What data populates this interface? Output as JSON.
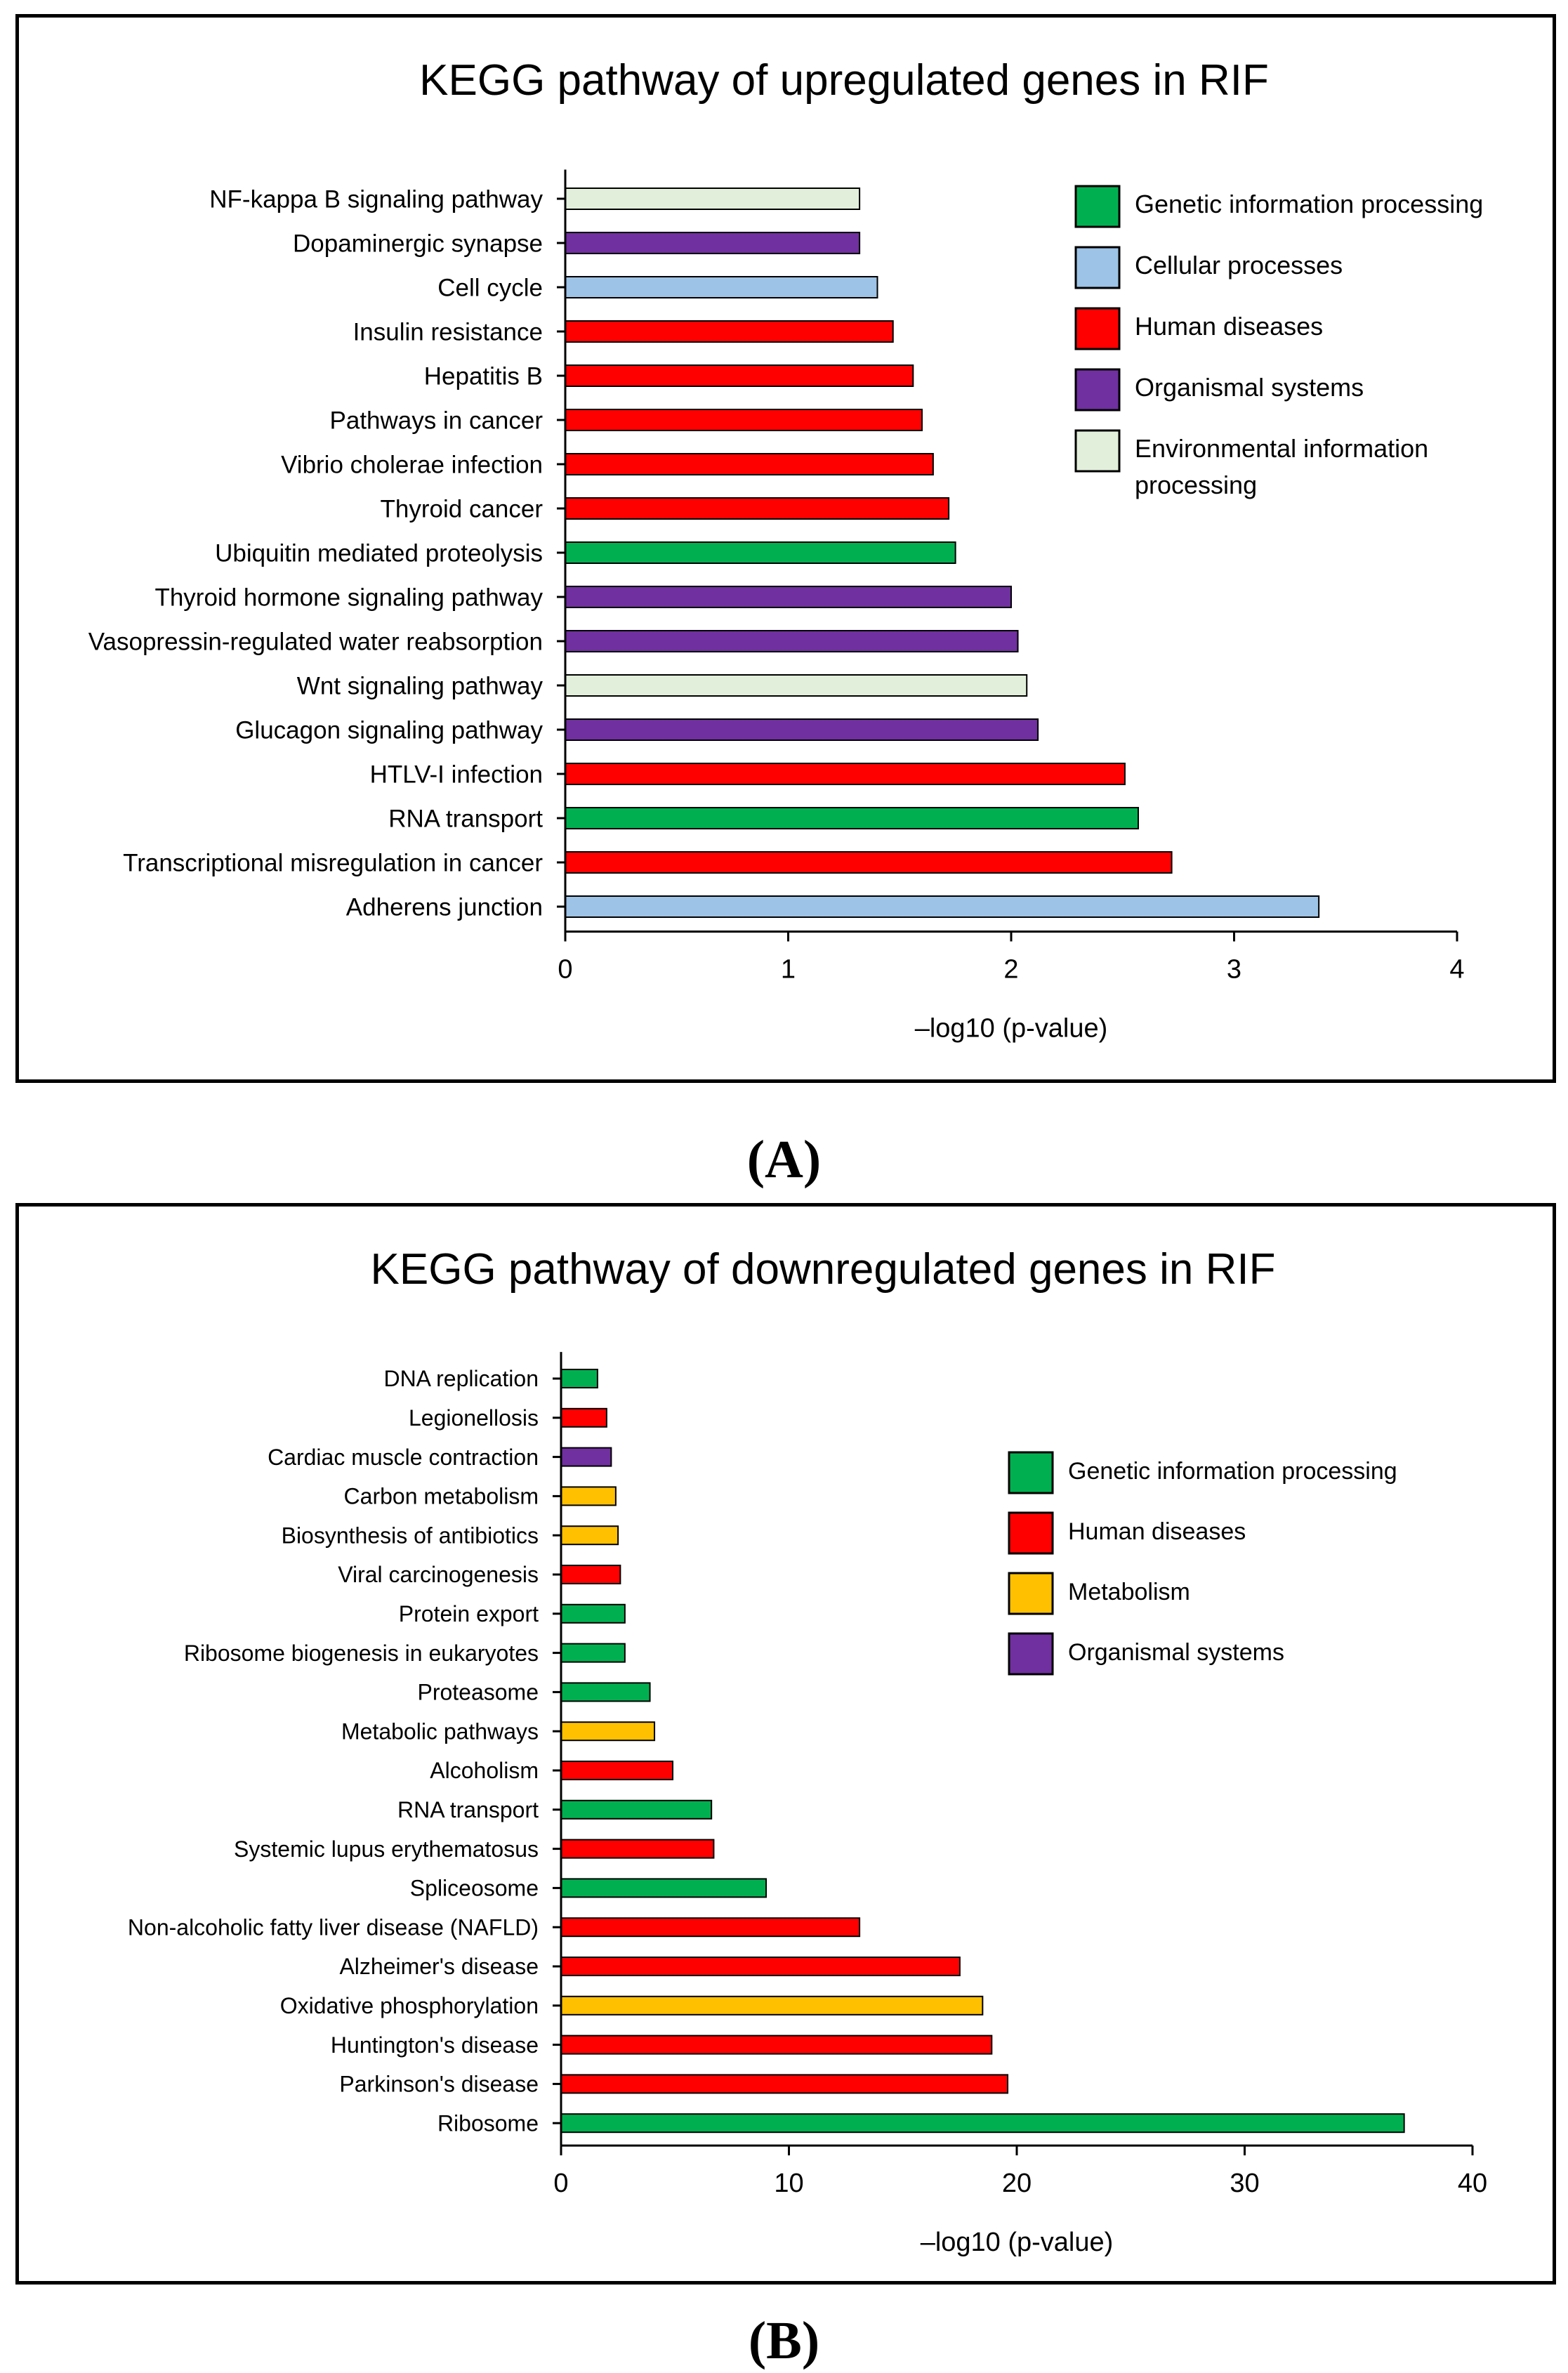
{
  "chart_data": [
    {
      "type": "bar",
      "orientation": "horizontal",
      "title": "KEGG pathway of upregulated genes in RIF",
      "xlabel": "–log10 (p-value)",
      "ylabel": "",
      "xlim": [
        0,
        4
      ],
      "xticks": [
        "0",
        "1",
        "2",
        "3",
        "4"
      ],
      "grid": false,
      "legend_position": "top-right",
      "categories": [
        "NF-kappa B signaling pathway",
        "Dopaminergic synapse",
        "Cell cycle",
        "Insulin resistance",
        "Hepatitis B",
        "Pathways in cancer",
        "Vibrio cholerae infection",
        "Thyroid cancer",
        "Ubiquitin mediated proteolysis",
        "Thyroid hormone signaling pathway",
        "Vasopressin-regulated water reabsorption",
        "Wnt signaling pathway",
        "Glucagon signaling pathway",
        "HTLV-I infection",
        "RNA transport",
        "Transcriptional misregulation in cancer",
        "Adherens junction"
      ],
      "values": [
        1.32,
        1.32,
        1.4,
        1.47,
        1.56,
        1.6,
        1.65,
        1.72,
        1.75,
        2.0,
        2.03,
        2.07,
        2.12,
        2.51,
        2.57,
        2.72,
        3.38
      ],
      "groups": [
        "Environmental information processing",
        "Organismal systems",
        "Cellular processes",
        "Human diseases",
        "Human diseases",
        "Human diseases",
        "Human diseases",
        "Human diseases",
        "Genetic information processing",
        "Organismal systems",
        "Organismal systems",
        "Environmental information processing",
        "Organismal systems",
        "Human diseases",
        "Genetic information processing",
        "Human diseases",
        "Cellular processes"
      ],
      "legend": [
        {
          "label": "Genetic information processing",
          "color": "#00B050"
        },
        {
          "label": "Cellular processes",
          "color": "#9DC3E6"
        },
        {
          "label": "Human diseases",
          "color": "#FF0000"
        },
        {
          "label": "Organismal systems",
          "color": "#7030A0"
        },
        {
          "label": "Environmental information processing",
          "color": "#E2EFDA"
        }
      ],
      "panel_label": "(A)"
    },
    {
      "type": "bar",
      "orientation": "horizontal",
      "title": "KEGG pathway of downregulated genes in RIF",
      "xlabel": "–log10 (p-value)",
      "ylabel": "",
      "xlim": [
        0,
        40
      ],
      "xticks": [
        "0",
        "10",
        "20",
        "30",
        "40"
      ],
      "grid": false,
      "legend_position": "right",
      "categories": [
        "DNA replication",
        "Legionellosis",
        "Cardiac muscle contraction",
        "Carbon metabolism",
        "Biosynthesis of antibiotics",
        "Viral carcinogenesis",
        "Protein export",
        "Ribosome biogenesis in eukaryotes",
        "Proteasome",
        "Metabolic pathways",
        "Alcoholism",
        "RNA transport",
        "Systemic lupus erythematosus",
        "Spliceosome",
        "Non-alcoholic fatty liver disease (NAFLD)",
        "Alzheimer's disease",
        "Oxidative phosphorylation",
        "Huntington's disease",
        "Parkinson's disease",
        "Ribosome"
      ],
      "values": [
        1.6,
        2.0,
        2.2,
        2.4,
        2.5,
        2.6,
        2.8,
        2.8,
        3.9,
        4.1,
        4.9,
        6.6,
        6.7,
        9.0,
        13.1,
        17.5,
        18.5,
        18.9,
        19.6,
        37.0
      ],
      "groups": [
        "Genetic information processing",
        "Human diseases",
        "Organismal systems",
        "Metabolism",
        "Metabolism",
        "Human diseases",
        "Genetic information processing",
        "Genetic information processing",
        "Genetic information processing",
        "Metabolism",
        "Human diseases",
        "Genetic information processing",
        "Human diseases",
        "Genetic information processing",
        "Human diseases",
        "Human diseases",
        "Metabolism",
        "Human diseases",
        "Human diseases",
        "Genetic information processing"
      ],
      "legend": [
        {
          "label": "Genetic information processing",
          "color": "#00B050"
        },
        {
          "label": "Human diseases",
          "color": "#FF0000"
        },
        {
          "label": "Metabolism",
          "color": "#FFC000"
        },
        {
          "label": "Organismal systems",
          "color": "#7030A0"
        }
      ],
      "panel_label": "(B)"
    }
  ]
}
